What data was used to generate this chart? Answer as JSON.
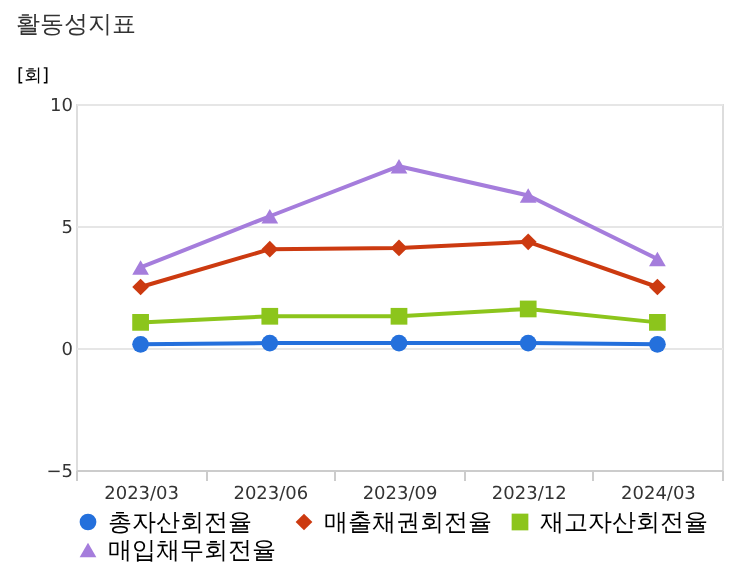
{
  "chart_data": {
    "type": "line",
    "title": "활동성지표",
    "ylabel": "[회]",
    "categories": [
      "2023/03",
      "2023/06",
      "2023/09",
      "2023/12",
      "2024/03"
    ],
    "ylim": [
      -5,
      10
    ],
    "yticks": [
      -5,
      0,
      5,
      10
    ],
    "grid": "y",
    "legend": "bottom",
    "line_style": "solid",
    "series": [
      {
        "name": "총자산회전율",
        "color": "#2470dc",
        "marker": "circle",
        "values": [
          0.15,
          0.2,
          0.2,
          0.2,
          0.15
        ]
      },
      {
        "name": "매출채권회전율",
        "color": "#cc3a10",
        "marker": "diamond",
        "values": [
          2.5,
          4.05,
          4.1,
          4.35,
          2.5
        ]
      },
      {
        "name": "재고자산회전율",
        "color": "#8cc51c",
        "marker": "square",
        "values": [
          1.05,
          1.3,
          1.3,
          1.6,
          1.05
        ]
      },
      {
        "name": "매입채무회전율",
        "color": "#a57ddc",
        "marker": "triangle",
        "values": [
          3.3,
          5.4,
          7.45,
          6.25,
          3.65
        ]
      }
    ]
  }
}
